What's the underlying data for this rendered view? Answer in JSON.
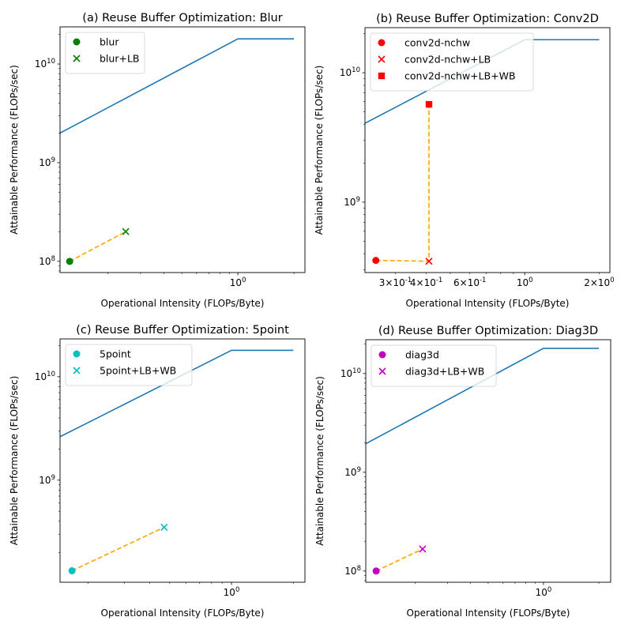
{
  "figure": {
    "ylabel": "Attainable Performance (FLOPs/sec)",
    "xlabel": "Operational Intensity (FLOPs/Byte)"
  },
  "chart_data": [
    {
      "type": "scatter",
      "title": "(a) Reuse Buffer Optimization: Blur",
      "xlabel": "Operational Intensity (FLOPs/Byte)",
      "ylabel": "Attainable Performance (FLOPs/sec)",
      "xscale": "log",
      "yscale": "log",
      "xlim": [
        0.111,
        2.29
      ],
      "ylim": [
        77000000.0,
        23800000000.0
      ],
      "xticks": [
        {
          "value": 1,
          "label": "10^0"
        }
      ],
      "yticks": [
        {
          "value": 100000000.0,
          "label": "10^8"
        },
        {
          "value": 1000000000.0,
          "label": "10^9"
        },
        {
          "value": 10000000000.0,
          "label": "10^10"
        }
      ],
      "grid": false,
      "legend_position": "upper-left",
      "roofline": {
        "color": "#1f77b4",
        "peak_flops": 18000000000.0,
        "bandwidth": 18000000000.0,
        "x_range": [
          0.111,
          2.0
        ]
      },
      "connector": {
        "color": "#ffa500",
        "style": "dashed"
      },
      "series": [
        {
          "name": "blur",
          "marker": "circle",
          "color": "#008000",
          "x": 0.125,
          "y": 100000000.0
        },
        {
          "name": "blur+LB",
          "marker": "x",
          "color": "#008000",
          "x": 0.25,
          "y": 200000000.0
        }
      ]
    },
    {
      "type": "scatter",
      "title": "(b) Reuse Buffer Optimization: Conv2D",
      "xlabel": "Operational Intensity (FLOPs/Byte)",
      "ylabel": "Attainable Performance (FLOPs/sec)",
      "xscale": "log",
      "yscale": "log",
      "xlim": [
        0.226,
        2.21
      ],
      "ylim": [
        286000000.0,
        22300000000.0
      ],
      "xticks": [
        {
          "value": 0.3,
          "label": "3×10^-1"
        },
        {
          "value": 0.4,
          "label": "4×10^-1"
        },
        {
          "value": 0.6,
          "label": "6×10^-1"
        },
        {
          "value": 1,
          "label": "10^0"
        },
        {
          "value": 2,
          "label": "2×10^0"
        }
      ],
      "yticks": [
        {
          "value": 1000000000.0,
          "label": "10^9"
        },
        {
          "value": 10000000000.0,
          "label": "10^10"
        }
      ],
      "grid": false,
      "legend_position": "upper-left",
      "roofline": {
        "color": "#1f77b4",
        "peak_flops": 18000000000.0,
        "bandwidth": 18000000000.0,
        "x_range": [
          0.226,
          2.0
        ]
      },
      "connector": {
        "color": "#ffa500",
        "style": "dashed"
      },
      "series": [
        {
          "name": "conv2d-nchw",
          "marker": "circle",
          "color": "#ff0000",
          "x": 0.25,
          "y": 355000000.0
        },
        {
          "name": "conv2d-nchw+LB",
          "marker": "x",
          "color": "#ff0000",
          "x": 0.41,
          "y": 350000000.0
        },
        {
          "name": "conv2d-nchw+LB+WB",
          "marker": "square",
          "color": "#ff0000",
          "x": 0.41,
          "y": 5700000000.0
        }
      ]
    },
    {
      "type": "scatter",
      "title": "(c) Reuse Buffer Optimization: 5point",
      "xlabel": "Operational Intensity (FLOPs/Byte)",
      "ylabel": "Attainable Performance (FLOPs/sec)",
      "xscale": "log",
      "yscale": "log",
      "xlim": [
        0.146,
        2.28
      ],
      "ylim": [
        103000000.0,
        23200000000.0
      ],
      "xticks": [
        {
          "value": 1,
          "label": "10^0"
        }
      ],
      "yticks": [
        {
          "value": 1000000000.0,
          "label": "10^9"
        },
        {
          "value": 10000000000.0,
          "label": "10^10"
        }
      ],
      "grid": false,
      "legend_position": "upper-left",
      "roofline": {
        "color": "#1f77b4",
        "peak_flops": 18000000000.0,
        "bandwidth": 18000000000.0,
        "x_range": [
          0.146,
          2.0
        ]
      },
      "connector": {
        "color": "#ffa500",
        "style": "dashed"
      },
      "series": [
        {
          "name": "5point",
          "marker": "circle",
          "color": "#00bfbf",
          "x": 0.167,
          "y": 133000000.0
        },
        {
          "name": "5point+LB+WB",
          "marker": "x",
          "color": "#00bfbf",
          "x": 0.47,
          "y": 350000000.0
        }
      ]
    },
    {
      "type": "scatter",
      "title": "(d) Reuse Buffer Optimization: Diag3D",
      "xlabel": "Operational Intensity (FLOPs/Byte)",
      "ylabel": "Attainable Performance (FLOPs/sec)",
      "xscale": "log",
      "yscale": "log",
      "xlim": [
        0.108,
        2.32
      ],
      "ylim": [
        77000000.0,
        22000000000.0
      ],
      "xticks": [
        {
          "value": 1,
          "label": "10^0"
        }
      ],
      "yticks": [
        {
          "value": 100000000.0,
          "label": "10^8"
        },
        {
          "value": 1000000000.0,
          "label": "10^9"
        },
        {
          "value": 10000000000.0,
          "label": "10^10"
        }
      ],
      "grid": false,
      "legend_position": "upper-left",
      "roofline": {
        "color": "#1f77b4",
        "peak_flops": 18000000000.0,
        "bandwidth": 18000000000.0,
        "x_range": [
          0.108,
          2.0
        ]
      },
      "connector": {
        "color": "#ffa500",
        "style": "dashed"
      },
      "series": [
        {
          "name": "diag3d",
          "marker": "circle",
          "color": "#bf00bf",
          "x": 0.123,
          "y": 100000000.0
        },
        {
          "name": "diag3d+LB+WB",
          "marker": "x",
          "color": "#bf00bf",
          "x": 0.22,
          "y": 167000000.0
        }
      ]
    }
  ]
}
